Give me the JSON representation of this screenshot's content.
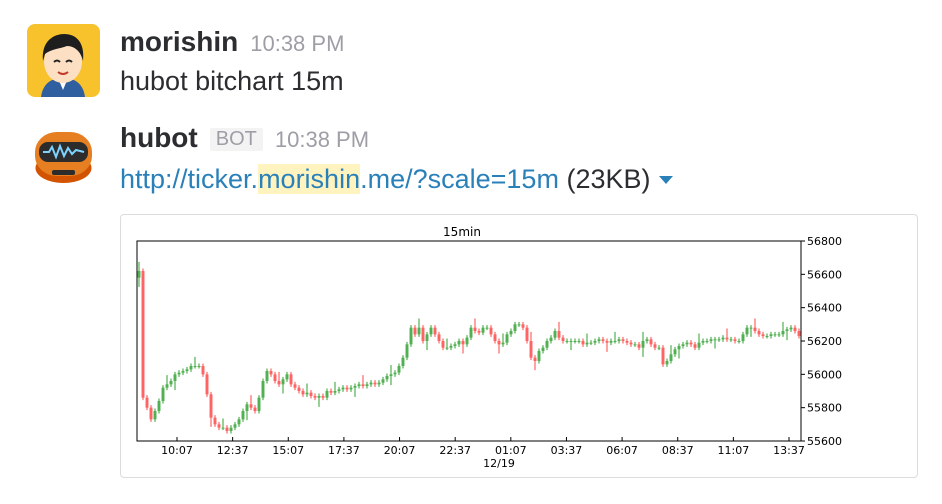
{
  "messages": [
    {
      "author": "morishin",
      "time": "10:38 PM",
      "text": "hubot bitchart 15m"
    },
    {
      "author": "hubot",
      "badge": "BOT",
      "time": "10:38 PM",
      "link": {
        "prefix": "http://ticker.",
        "highlight": "morishin",
        "suffix": ".me/?scale=15m"
      },
      "size": "(23KB)"
    }
  ],
  "colors": {
    "link": "#2a80b9",
    "up": "#2ca02c",
    "down": "#ff4444"
  },
  "chart_data": {
    "type": "candlestick",
    "title": "15min",
    "x_ticks": [
      "10:07",
      "12:37",
      "15:07",
      "17:37",
      "20:07",
      "22:37",
      "01:07",
      "03:37",
      "06:07",
      "08:37",
      "11:07",
      "13:37"
    ],
    "x_date_label": "12/19",
    "y_ticks": [
      55600,
      55800,
      56000,
      56200,
      56400,
      56600,
      56800
    ],
    "ylim": [
      55600,
      56800
    ],
    "y_axis_side": "right",
    "grid": false,
    "close": [
      56620,
      55860,
      55800,
      55730,
      55780,
      55840,
      55920,
      55940,
      55960,
      56000,
      56010,
      56020,
      56030,
      56050,
      56050,
      56050,
      56000,
      55880,
      55740,
      55700,
      55680,
      55680,
      55660,
      55680,
      55700,
      55730,
      55780,
      55820,
      55800,
      55780,
      55860,
      55960,
      56020,
      56000,
      55960,
      55940,
      55970,
      56000,
      55940,
      55920,
      55900,
      55880,
      55890,
      55870,
      55860,
      55870,
      55860,
      55900,
      55890,
      55900,
      55910,
      55920,
      55910,
      55920,
      55930,
      55940,
      55930,
      55940,
      55950,
      55940,
      55950,
      55970,
      55990,
      56000,
      56010,
      56050,
      56100,
      56180,
      56280,
      56240,
      56280,
      56200,
      56240,
      56280,
      56240,
      56200,
      56160,
      56160,
      56170,
      56180,
      56200,
      56180,
      56220,
      56280,
      56260,
      56250,
      56280,
      56280,
      56240,
      56200,
      56180,
      56190,
      56240,
      56260,
      56300,
      56300,
      56280,
      56200,
      56100,
      56080,
      56140,
      56160,
      56200,
      56220,
      56260,
      56220,
      56200,
      56200,
      56200,
      56200,
      56200,
      56180,
      56190,
      56190,
      56200,
      56210,
      56200,
      56190,
      56200,
      56200,
      56210,
      56200,
      56190,
      56180,
      56180,
      56160,
      56200,
      56210,
      56180,
      56160,
      56160,
      56060,
      56080,
      56120,
      56150,
      56170,
      56180,
      56190,
      56180,
      56160,
      56190,
      56200,
      56200,
      56210,
      56210,
      56210,
      56220,
      56210,
      56210,
      56200,
      56200,
      56240,
      56280,
      56280,
      56260,
      56240,
      56230,
      56230,
      56240,
      56240,
      56240,
      56260,
      56270,
      56280,
      56260,
      56230
    ]
  }
}
